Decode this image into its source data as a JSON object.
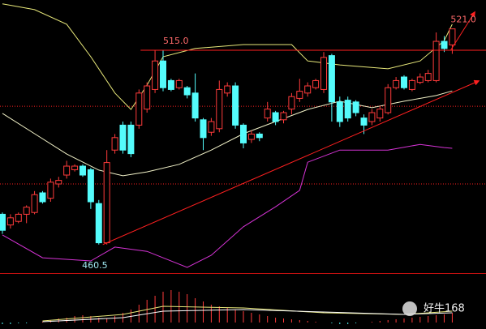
{
  "chart_data": {
    "type": "candlestick",
    "xlim": [
      -0.3,
      60.2
    ],
    "ylim": [
      452.5,
      529.1
    ],
    "up_color": "#ff3b3b",
    "down_color": "#54fcfc",
    "open": [
      469,
      466,
      467,
      469,
      469.5,
      475,
      473.5,
      477.5,
      480,
      481.5,
      482.5,
      481.5,
      472,
      461,
      487,
      494,
      494,
      494,
      498.5,
      504,
      512,
      506.5,
      504.5,
      504.5,
      503,
      495.5,
      492,
      493,
      503,
      505,
      494,
      490,
      491.5,
      496,
      497.5,
      495.5,
      498.5,
      501.5,
      503,
      504.5,
      504,
      513.5,
      500.5,
      501,
      500.5,
      496,
      495,
      496,
      497.5,
      504.5,
      507.5,
      504,
      506,
      506.5,
      506.5,
      517.5,
      516.5
    ],
    "high": [
      469.5,
      469,
      469.5,
      471.5,
      475.5,
      475.5,
      479,
      479.5,
      484,
      483,
      483,
      482,
      473,
      487,
      491.5,
      495,
      495,
      504,
      506,
      515,
      515,
      507,
      507,
      505,
      508.5,
      496,
      496,
      506.5,
      506,
      506,
      494.5,
      492.5,
      492,
      500.5,
      498,
      498,
      503,
      507,
      506,
      507,
      514.5,
      514,
      502,
      502,
      501,
      497,
      498.5,
      499.5,
      505.5,
      507.5,
      508,
      507,
      508.5,
      509.5,
      520,
      519,
      521
    ],
    "low": [
      463.5,
      465,
      466.5,
      466.5,
      469,
      472,
      472.5,
      476.5,
      479,
      481,
      479.5,
      470.5,
      460.5,
      460.5,
      486,
      486,
      485,
      493,
      497.5,
      503,
      503.5,
      503.5,
      504,
      501.5,
      495,
      487,
      491,
      492,
      502,
      493,
      487.5,
      489,
      489.5,
      495,
      494,
      494.5,
      497,
      500.5,
      502,
      504,
      503,
      495,
      493.5,
      495,
      496.5,
      491.5,
      494,
      495,
      497,
      504,
      504,
      503.5,
      505.5,
      506,
      506,
      514.5,
      514
    ],
    "close": [
      464.5,
      468,
      469,
      471,
      474.5,
      472.5,
      478,
      478.5,
      482.5,
      482.5,
      480,
      472.5,
      461,
      483.5,
      490.5,
      487,
      486,
      503,
      505,
      512,
      504.5,
      504,
      506.5,
      502.5,
      496,
      490.5,
      495,
      504,
      505,
      494,
      489,
      491.5,
      490.5,
      498.5,
      495,
      497.5,
      502,
      503.5,
      505,
      506.5,
      513,
      500.5,
      495,
      496,
      497.5,
      494,
      497.5,
      498.5,
      504.5,
      506.5,
      504.5,
      506.5,
      507.5,
      508.5,
      517.5,
      515.5,
      521
    ],
    "overlays": [
      {
        "color": "#e8e87a",
        "x": [
          0,
          4,
          8,
          11,
          14,
          16,
          18,
          20,
          24,
          30,
          36,
          38,
          42,
          48,
          52,
          55,
          56
        ],
        "values": [
          528.0,
          526.4,
          522.3,
          513.2,
          503.0,
          498.4,
          505.2,
          513.2,
          515.5,
          516.6,
          516.6,
          512.0,
          510.9,
          509.8,
          512.0,
          517.7,
          522.3
        ]
      },
      {
        "color": "#f2f2c8",
        "x": [
          0,
          4,
          8,
          12,
          15,
          18,
          22,
          26,
          30,
          34,
          38,
          42,
          46,
          50,
          54,
          56
        ],
        "values": [
          497.3,
          491.6,
          485.9,
          481.4,
          479.8,
          480.9,
          483.0,
          487.0,
          491.6,
          495.0,
          498.4,
          500.7,
          498.9,
          500.7,
          502.3,
          503.6
        ]
      },
      {
        "color": "#d633d6",
        "x": [
          0,
          5,
          11,
          14,
          18,
          23,
          26,
          30,
          34,
          37,
          38,
          42,
          48,
          52,
          55,
          56
        ],
        "values": [
          463.2,
          456.8,
          455.9,
          459.8,
          458.6,
          454.1,
          457.5,
          465.5,
          471.1,
          475.7,
          483.6,
          487.0,
          487.0,
          488.6,
          487.7,
          487.5
        ]
      }
    ],
    "trend_lines": [
      {
        "color": "#ff2020",
        "x": [
          12.5,
          59.3
        ],
        "values": [
          460.5,
          506.4
        ],
        "arrow": true
      },
      {
        "color": "#ff2020",
        "x": [
          55.8,
          58.8
        ],
        "values": [
          515,
          525.7
        ],
        "arrow": true
      },
      {
        "color": "#ff2020",
        "x": [
          17.2,
          60.2
        ],
        "values": [
          515,
          515
        ],
        "arrow": false
      }
    ],
    "levels": [
      {
        "value": 499.3,
        "color": "#ff2020"
      },
      {
        "value": 477.5,
        "color": "#ff2020"
      }
    ],
    "annotations": [
      {
        "value": 515,
        "label": "515.0",
        "x": 20,
        "color": "#ff6a6a"
      },
      {
        "value": 521,
        "label": "521.0",
        "x": 55.8,
        "color": "#ff6a6a"
      },
      {
        "value": 460.5,
        "label": "460.5",
        "x": 11.5,
        "color": "#9fe8f0"
      }
    ],
    "macd": {
      "ylim": [
        -8,
        53
      ],
      "values": [
        -2,
        -2,
        -1,
        -1,
        0,
        1,
        3,
        5,
        6,
        8,
        9,
        8,
        6,
        5,
        8,
        12,
        16,
        22,
        28,
        33,
        38,
        40,
        38,
        35,
        30,
        26,
        22,
        20,
        18,
        16,
        14,
        12,
        10,
        8,
        6,
        5,
        4,
        3,
        2,
        1,
        0,
        -1,
        -2,
        -2,
        -1,
        0,
        1,
        2,
        3,
        4,
        5,
        6,
        7,
        8,
        9,
        10,
        12
      ],
      "lines": [
        {
          "color": "#e8e87a",
          "x": [
            5,
            15,
            20,
            30,
            40,
            50,
            56
          ],
          "values": [
            2,
            10,
            20,
            18,
            12,
            10,
            14
          ]
        },
        {
          "color": "#ffffff",
          "x": [
            5,
            15,
            20,
            30,
            40,
            50,
            56
          ],
          "values": [
            1,
            6,
            14,
            16,
            13,
            10,
            12
          ]
        }
      ]
    },
    "watermark": "好牛168"
  }
}
